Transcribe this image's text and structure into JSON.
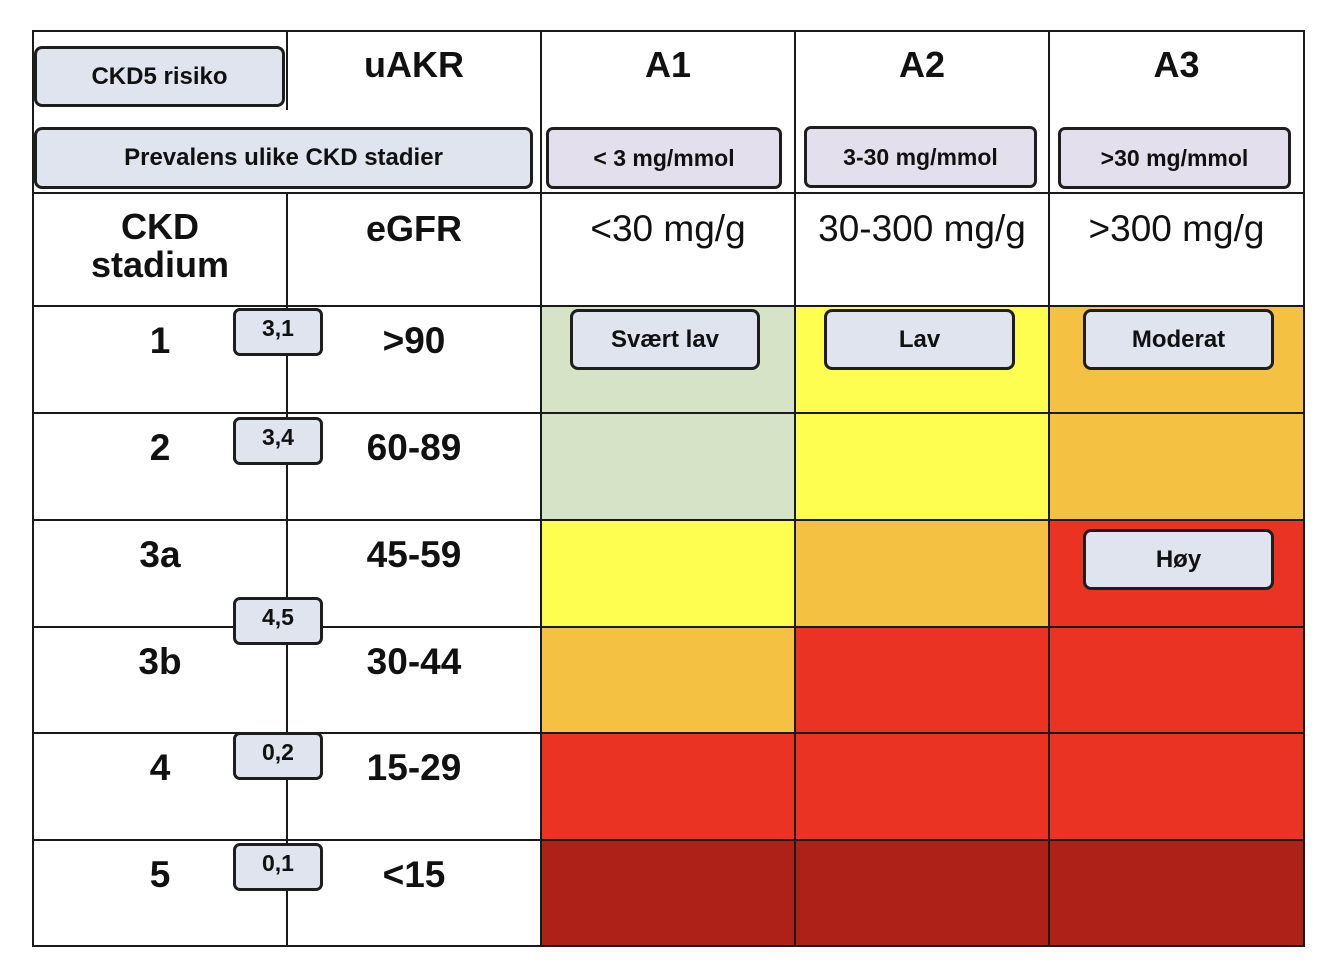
{
  "colors": {
    "very_low": "#d7e3c6",
    "low": "#fdfe50",
    "moderate": "#f4c142",
    "high": "#ea3323",
    "very_high": "#ae2118",
    "pill": "#dfe4ee",
    "pill_lilac": "#e4dfec",
    "line": "#1a1a1a"
  },
  "header": {
    "ckd5_risk_label": "CKD5 risiko",
    "prevalence_label": "Prevalens ulike CKD stadier",
    "uakr_label": "uAKR",
    "ckd_stage_label": "CKD stadium",
    "egfr_label": "eGFR"
  },
  "albuminuria": [
    {
      "category": "A1",
      "mmol": "< 3 mg/mmol",
      "mg_g": "<30 mg/g"
    },
    {
      "category": "A2",
      "mmol": "3-30 mg/mmol",
      "mg_g": "30-300 mg/g"
    },
    {
      "category": "A3",
      "mmol": ">30 mg/mmol",
      "mg_g": ">300 mg/g"
    }
  ],
  "stages": [
    {
      "stage": "1",
      "egfr": ">90",
      "risk": [
        "very_low",
        "low",
        "moderate"
      ]
    },
    {
      "stage": "2",
      "egfr": "60-89",
      "risk": [
        "very_low",
        "low",
        "moderate"
      ]
    },
    {
      "stage": "3a",
      "egfr": "45-59",
      "risk": [
        "low",
        "moderate",
        "high"
      ]
    },
    {
      "stage": "3b",
      "egfr": "30-44",
      "risk": [
        "moderate",
        "high",
        "high"
      ]
    },
    {
      "stage": "4",
      "egfr": "15-29",
      "risk": [
        "high",
        "high",
        "high"
      ]
    },
    {
      "stage": "5",
      "egfr": "<15",
      "risk": [
        "very_high",
        "very_high",
        "very_high"
      ]
    }
  ],
  "prevalence": [
    "3,1",
    "3,4",
    "4,5",
    "0,2",
    "0,1"
  ],
  "risk_labels": {
    "very_low": "Svært lav",
    "low": "Lav",
    "moderate": "Moderat",
    "high": "Høy"
  }
}
